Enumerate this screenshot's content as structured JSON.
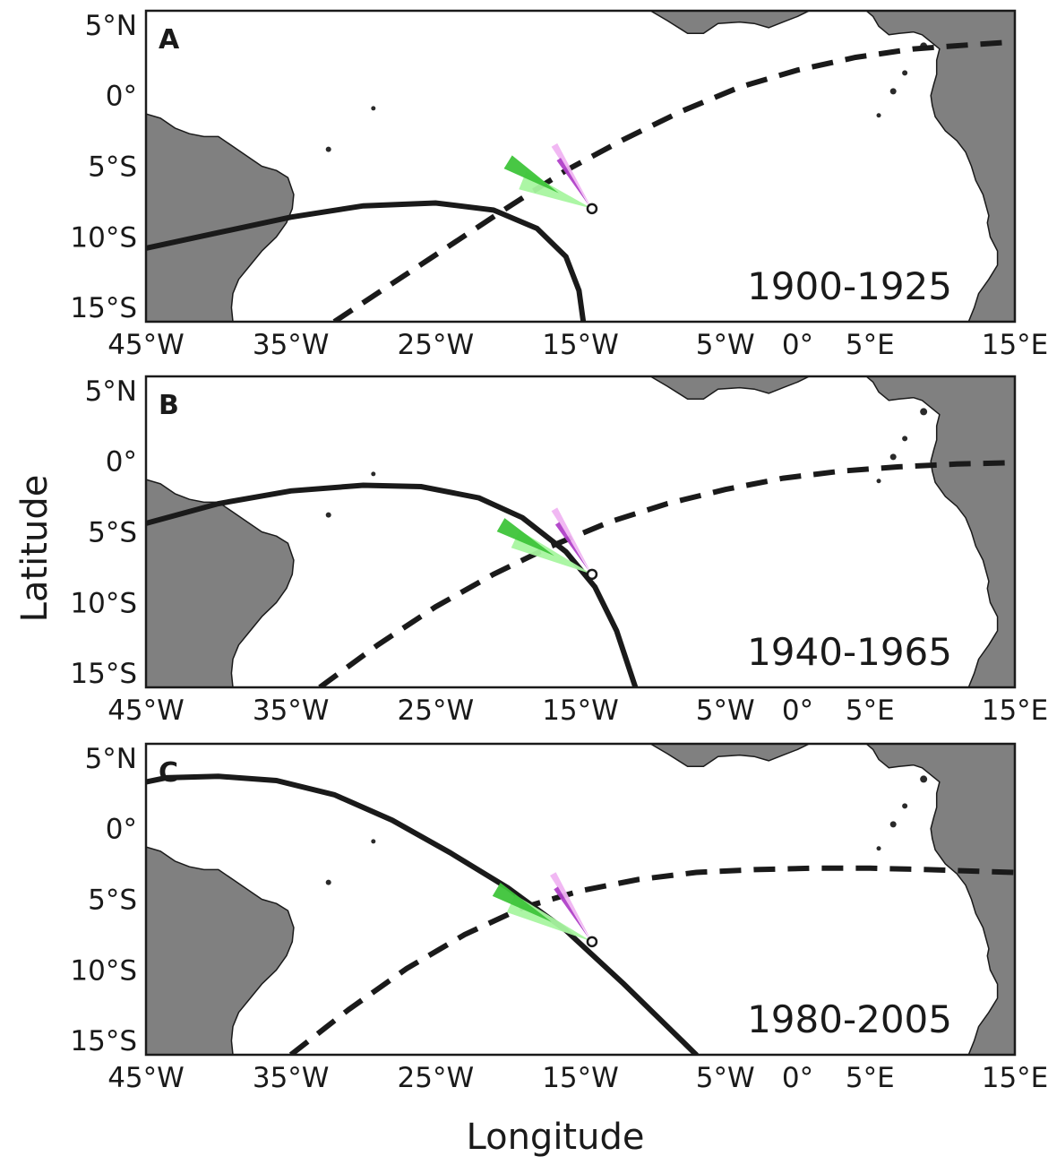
{
  "figure": {
    "xlabel": "Longitude",
    "ylabel": "Latitude",
    "x_ticks": [
      {
        "label": "45°W",
        "lon": -45
      },
      {
        "label": "35°W",
        "lon": -35
      },
      {
        "label": "25°W",
        "lon": -25
      },
      {
        "label": "15°W",
        "lon": -15
      },
      {
        "label": "5°W",
        "lon": -5
      },
      {
        "label": "0°",
        "lon": 0
      },
      {
        "label": "5°E",
        "lon": 5
      },
      {
        "label": "15°E",
        "lon": 15
      }
    ],
    "y_ticks": [
      {
        "label": "5°N",
        "lat": 5
      },
      {
        "label": "0°",
        "lat": 0
      },
      {
        "label": "5°S",
        "lat": -5
      },
      {
        "label": "10°S",
        "lat": -10
      },
      {
        "label": "15°S",
        "lat": -15
      }
    ],
    "extent": {
      "lon": [
        -45,
        15
      ],
      "lat": [
        -16,
        6
      ]
    },
    "colors": {
      "land": "#808080",
      "ocean": "#ffffff",
      "lines": "#1a1a1a",
      "green_light": "#a8f5a0",
      "green_dark": "#3ec43a",
      "purple_light": "#f0b4f2",
      "purple_dark": "#b040c8"
    },
    "panels": [
      {
        "letter": "A",
        "period": "1900-1925",
        "start": {
          "lon": -14.2,
          "lat": -8.0
        },
        "solid_curve": [
          [
            -45,
            -10.8
          ],
          [
            -40,
            -9.7
          ],
          [
            -35,
            -8.6
          ],
          [
            -30,
            -7.8
          ],
          [
            -25,
            -7.6
          ],
          [
            -21,
            -8.1
          ],
          [
            -18,
            -9.4
          ],
          [
            -16,
            -11.4
          ],
          [
            -15.1,
            -13.8
          ],
          [
            -14.8,
            -16
          ]
        ],
        "dashed_curve": [
          [
            -32,
            -16
          ],
          [
            -28,
            -13.3
          ],
          [
            -24,
            -10.6
          ],
          [
            -20,
            -7.9
          ],
          [
            -16,
            -5.3
          ],
          [
            -12,
            -3.1
          ],
          [
            -8,
            -1.1
          ],
          [
            -4,
            0.6
          ],
          [
            0,
            1.8
          ],
          [
            4,
            2.7
          ],
          [
            8,
            3.3
          ],
          [
            12,
            3.6
          ],
          [
            15,
            3.8
          ]
        ],
        "tracks": [
          {
            "color": "green_light",
            "from": [
              -14.2,
              -8.0
            ],
            "to": [
              -19.0,
              -6.0
            ],
            "width": 1.0
          },
          {
            "color": "green_dark",
            "from": [
              -16.5,
              -6.9
            ],
            "to": [
              -20.0,
              -4.7
            ],
            "width": 0.8
          },
          {
            "color": "purple_light",
            "from": [
              -14.2,
              -8.0
            ],
            "to": [
              -16.8,
              -3.5
            ],
            "width": 0.35
          },
          {
            "color": "purple_dark",
            "from": [
              -14.4,
              -7.8
            ],
            "to": [
              -16.5,
              -4.5
            ],
            "width": 0.25
          }
        ]
      },
      {
        "letter": "B",
        "period": "1940-1965",
        "start": {
          "lon": -14.2,
          "lat": -8.0
        },
        "solid_curve": [
          [
            -45,
            -4.4
          ],
          [
            -40,
            -3.0
          ],
          [
            -35,
            -2.1
          ],
          [
            -30,
            -1.7
          ],
          [
            -26,
            -1.8
          ],
          [
            -22,
            -2.6
          ],
          [
            -19,
            -4.0
          ],
          [
            -16,
            -6.4
          ],
          [
            -14,
            -8.9
          ],
          [
            -12.5,
            -12.0
          ],
          [
            -11.2,
            -16
          ]
        ],
        "dashed_curve": [
          [
            -33,
            -16
          ],
          [
            -29,
            -13.0
          ],
          [
            -25,
            -10.3
          ],
          [
            -21,
            -8.0
          ],
          [
            -17,
            -6.0
          ],
          [
            -13,
            -4.3
          ],
          [
            -9,
            -3.0
          ],
          [
            -5,
            -2.0
          ],
          [
            -1,
            -1.2
          ],
          [
            3,
            -0.7
          ],
          [
            7,
            -0.4
          ],
          [
            11,
            -0.2
          ],
          [
            15,
            -0.1
          ]
        ],
        "tracks": [
          {
            "color": "green_light",
            "from": [
              -14.2,
              -8.0
            ],
            "to": [
              -19.5,
              -5.5
            ],
            "width": 1.0
          },
          {
            "color": "green_dark",
            "from": [
              -16.8,
              -6.7
            ],
            "to": [
              -20.5,
              -4.5
            ],
            "width": 0.8
          },
          {
            "color": "purple_light",
            "from": [
              -14.2,
              -8.0
            ],
            "to": [
              -16.8,
              -3.4
            ],
            "width": 0.35
          },
          {
            "color": "purple_dark",
            "from": [
              -14.4,
              -7.8
            ],
            "to": [
              -16.6,
              -4.4
            ],
            "width": 0.25
          }
        ]
      },
      {
        "letter": "C",
        "period": "1980-2005",
        "start": {
          "lon": -14.2,
          "lat": -8.0
        },
        "solid_curve": [
          [
            -45,
            3.3
          ],
          [
            -43.6,
            3.6
          ],
          [
            -40,
            3.7
          ],
          [
            -36,
            3.4
          ],
          [
            -32,
            2.4
          ],
          [
            -28,
            0.6
          ],
          [
            -24,
            -1.7
          ],
          [
            -20,
            -4.2
          ],
          [
            -16,
            -7.2
          ],
          [
            -12,
            -11.0
          ],
          [
            -8,
            -15.0
          ],
          [
            -7.0,
            -16
          ]
        ],
        "dashed_curve": [
          [
            -35,
            -16
          ],
          [
            -31,
            -12.8
          ],
          [
            -27,
            -9.9
          ],
          [
            -23,
            -7.5
          ],
          [
            -19,
            -5.6
          ],
          [
            -15,
            -4.4
          ],
          [
            -11,
            -3.6
          ],
          [
            -7,
            -3.1
          ],
          [
            -3,
            -2.9
          ],
          [
            1,
            -2.8
          ],
          [
            5,
            -2.8
          ],
          [
            9,
            -2.9
          ],
          [
            12,
            -3.0
          ],
          [
            15,
            -3.1
          ]
        ],
        "tracks": [
          {
            "color": "green_light",
            "from": [
              -14.2,
              -8.0
            ],
            "to": [
              -19.8,
              -5.3
            ],
            "width": 1.0
          },
          {
            "color": "green_dark",
            "from": [
              -17.0,
              -6.6
            ],
            "to": [
              -20.8,
              -4.3
            ],
            "width": 0.8
          },
          {
            "color": "purple_light",
            "from": [
              -14.2,
              -8.0
            ],
            "to": [
              -16.9,
              -3.2
            ],
            "width": 0.35
          },
          {
            "color": "purple_dark",
            "from": [
              -14.4,
              -7.8
            ],
            "to": [
              -16.7,
              -4.2
            ],
            "width": 0.25
          }
        ]
      }
    ]
  }
}
